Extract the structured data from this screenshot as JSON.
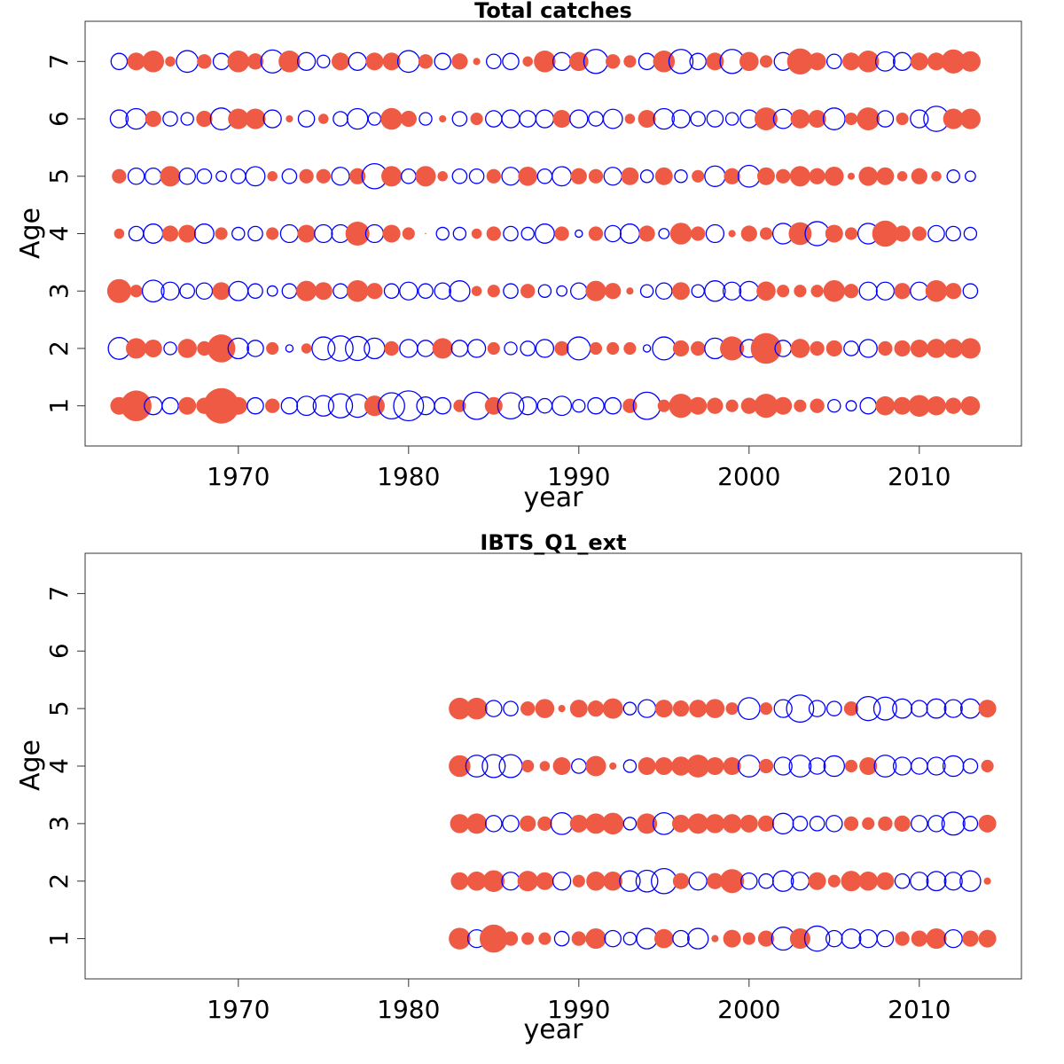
{
  "legend": {
    "colors": {
      "positive": "#ef5a44",
      "negative": "#0000ff"
    },
    "positive": "filled circle",
    "negative": "open circle"
  },
  "chart_data": [
    {
      "type": "bubble",
      "title": "Total catches",
      "xlabel": "year",
      "ylabel": "Age",
      "xlim": [
        1961,
        2016
      ],
      "ylim": [
        0.3,
        7.7
      ],
      "xticks": [
        "1970",
        "1980",
        "1990",
        "2000",
        "2010"
      ],
      "yticks": [
        "1",
        "2",
        "3",
        "4",
        "5",
        "6",
        "7"
      ],
      "grid": false,
      "bubble_values": "standardized residual; positive = filled red, negative = open blue, size proportional to |value|",
      "years": [
        1963,
        1964,
        1965,
        1966,
        1967,
        1968,
        1969,
        1970,
        1971,
        1972,
        1973,
        1974,
        1975,
        1976,
        1977,
        1978,
        1979,
        1980,
        1981,
        1982,
        1983,
        1984,
        1985,
        1986,
        1987,
        1988,
        1989,
        1990,
        1991,
        1992,
        1993,
        1994,
        1995,
        1996,
        1997,
        1998,
        1999,
        2000,
        2001,
        2002,
        2003,
        2004,
        2005,
        2006,
        2007,
        2008,
        2009,
        2010,
        2011,
        2012,
        2013
      ],
      "ages": [
        {
          "age": 1,
          "values": [
            0.6,
            1.8,
            -0.6,
            -0.5,
            0.6,
            0.5,
            2.4,
            0.6,
            -0.5,
            0.4,
            -0.5,
            -0.7,
            -0.8,
            -1.1,
            -1.0,
            0.8,
            -1.3,
            -1.7,
            -0.6,
            -0.5,
            0.3,
            -1.4,
            0.6,
            -1.3,
            -0.6,
            -0.4,
            -0.7,
            -0.3,
            -0.5,
            -0.5,
            0.4,
            -1.4,
            0.3,
            1.1,
            0.6,
            0.5,
            0.3,
            0.5,
            1.1,
            0.6,
            0.3,
            0.4,
            -0.3,
            -0.2,
            -0.5,
            0.7,
            0.6,
            0.9,
            0.7,
            0.5,
            0.7
          ]
        },
        {
          "age": 2,
          "values": [
            -0.9,
            0.8,
            0.6,
            -0.3,
            0.7,
            0.4,
            1.5,
            -0.8,
            -0.5,
            0.3,
            -0.1,
            0.2,
            -1.0,
            -1.2,
            -1.1,
            -0.8,
            0.4,
            -0.6,
            -0.5,
            0.8,
            -0.5,
            -0.6,
            0.3,
            -0.3,
            -0.4,
            -0.6,
            0.4,
            -1.0,
            0.3,
            0.3,
            0.3,
            -0.1,
            -1.0,
            0.5,
            0.4,
            -0.8,
            1.1,
            -0.6,
            1.8,
            -0.5,
            0.7,
            0.4,
            0.5,
            -0.4,
            -0.6,
            0.4,
            0.5,
            0.6,
            0.7,
            0.7,
            0.8
          ]
        },
        {
          "age": 3,
          "values": [
            1.1,
            0.3,
            -0.9,
            -0.6,
            -0.4,
            -0.5,
            0.6,
            -0.7,
            -0.4,
            -0.2,
            -0.4,
            0.8,
            0.6,
            -0.4,
            0.9,
            0.5,
            -0.4,
            -0.6,
            -0.4,
            -0.5,
            -0.8,
            0.2,
            0.3,
            -0.4,
            0.4,
            -0.3,
            -0.2,
            -0.5,
            0.8,
            0.5,
            0.1,
            -0.3,
            -0.5,
            0.6,
            -0.3,
            -0.8,
            -0.6,
            -0.7,
            0.7,
            0.3,
            0.3,
            0.3,
            0.9,
            0.4,
            -0.6,
            -0.6,
            0.5,
            -0.6,
            0.9,
            0.5,
            -0.4
          ]
        },
        {
          "age": 4,
          "values": [
            0.2,
            -0.4,
            -0.7,
            0.5,
            0.6,
            -0.7,
            0.3,
            -0.3,
            -0.4,
            0.3,
            -0.6,
            0.6,
            -0.6,
            -0.6,
            1.1,
            -0.6,
            0.6,
            0.3,
            0.0,
            -0.3,
            -0.3,
            0.2,
            0.4,
            -0.4,
            -0.3,
            -0.7,
            0.4,
            -0.1,
            0.4,
            -0.5,
            -0.7,
            0.5,
            -0.2,
            0.9,
            0.4,
            -0.6,
            0.1,
            0.5,
            0.3,
            -0.8,
            1.0,
            -1.1,
            0.6,
            0.3,
            -0.8,
            1.3,
            0.5,
            0.4,
            -0.5,
            -0.4,
            -0.3
          ]
        },
        {
          "age": 5,
          "values": [
            0.4,
            -0.5,
            -0.5,
            0.8,
            -0.5,
            -0.4,
            -0.2,
            -0.4,
            -0.7,
            0.2,
            -0.4,
            0.4,
            0.4,
            -0.6,
            0.5,
            -1.2,
            0.8,
            -0.4,
            0.8,
            0.2,
            -0.4,
            -0.4,
            0.4,
            -0.6,
            0.7,
            -0.4,
            -0.7,
            0.5,
            0.4,
            -0.6,
            0.6,
            -0.3,
            0.6,
            -0.3,
            0.3,
            -0.8,
            0.5,
            -0.9,
            0.6,
            0.4,
            0.8,
            0.5,
            0.7,
            0.1,
            0.7,
            0.6,
            0.2,
            0.5,
            0.2,
            -0.3,
            -0.2
          ]
        },
        {
          "age": 6,
          "values": [
            -0.6,
            -0.8,
            0.5,
            -0.4,
            -0.3,
            0.5,
            -0.9,
            0.8,
            0.8,
            -0.6,
            0.1,
            -0.5,
            0.2,
            -0.4,
            -0.8,
            -0.3,
            0.9,
            0.5,
            -0.3,
            0.1,
            -0.4,
            0.3,
            -0.5,
            -0.6,
            -0.5,
            -0.6,
            0.6,
            -0.6,
            -0.4,
            -0.7,
            0.2,
            0.6,
            -0.8,
            -0.6,
            -0.4,
            -0.5,
            -0.3,
            -0.6,
            1.0,
            -0.7,
            0.7,
            0.6,
            -0.9,
            0.3,
            1.0,
            -0.5,
            0.3,
            -0.6,
            -1.2,
            0.8,
            0.8
          ]
        },
        {
          "age": 7,
          "values": [
            -0.5,
            0.6,
            0.9,
            0.2,
            -0.9,
            0.4,
            -0.5,
            0.9,
            0.5,
            -1.0,
            0.9,
            -0.6,
            -0.3,
            0.6,
            -0.6,
            0.6,
            0.6,
            -0.9,
            0.4,
            -0.5,
            0.5,
            0.1,
            -0.4,
            -0.5,
            0.2,
            0.9,
            -0.6,
            0.7,
            -1.1,
            0.4,
            0.3,
            -0.5,
            0.9,
            -1.1,
            -0.5,
            0.6,
            -1.1,
            0.7,
            0.3,
            -0.6,
            1.3,
            0.6,
            -0.4,
            0.6,
            0.9,
            -0.7,
            -0.6,
            0.6,
            0.6,
            1.1,
            0.8
          ]
        }
      ]
    },
    {
      "type": "bubble",
      "title": "IBTS_Q1_ext",
      "xlabel": "year",
      "ylabel": "Age",
      "xlim": [
        1961,
        2016
      ],
      "ylim": [
        0.3,
        7.7
      ],
      "xticks": [
        "1970",
        "1980",
        "1990",
        "2000",
        "2010"
      ],
      "yticks": [
        "1",
        "2",
        "3",
        "4",
        "5",
        "6",
        "7"
      ],
      "grid": false,
      "bubble_values": "standardized residual; positive = filled red, negative = open blue, size proportional to |value|",
      "years": [
        1983,
        1984,
        1985,
        1986,
        1987,
        1988,
        1989,
        1990,
        1991,
        1992,
        1993,
        1994,
        1995,
        1996,
        1997,
        1998,
        1999,
        2000,
        2001,
        2002,
        2003,
        2004,
        2005,
        2006,
        2007,
        2008,
        2009,
        2010,
        2011,
        2012,
        2013,
        2014
      ],
      "ages": [
        {
          "age": 1,
          "values": [
            0.9,
            -0.6,
            1.5,
            0.4,
            0.3,
            0.3,
            -0.4,
            0.4,
            0.8,
            -0.5,
            -0.3,
            -0.8,
            0.7,
            -0.5,
            -0.8,
            0.1,
            0.6,
            0.3,
            0.5,
            -1.0,
            0.8,
            -1.2,
            -0.5,
            -0.7,
            -0.6,
            -0.5,
            0.4,
            0.5,
            0.8,
            -0.6,
            0.5,
            0.6
          ]
        },
        {
          "age": 2,
          "values": [
            0.6,
            0.7,
            0.9,
            -0.6,
            0.8,
            0.6,
            -0.6,
            0.3,
            0.7,
            0.7,
            -0.8,
            -0.9,
            -1.2,
            0.5,
            -0.6,
            0.5,
            1.1,
            -0.5,
            -0.4,
            -0.8,
            -0.6,
            0.6,
            0.3,
            0.8,
            0.7,
            0.6,
            -0.4,
            -0.6,
            -0.7,
            -0.6,
            -0.8,
            0.1
          ]
        },
        {
          "age": 3,
          "values": [
            0.7,
            0.8,
            -0.5,
            -0.5,
            0.5,
            0.4,
            -0.9,
            0.6,
            0.8,
            0.9,
            -0.3,
            0.8,
            -0.9,
            0.6,
            0.8,
            0.7,
            0.7,
            0.6,
            0.5,
            -0.8,
            -0.4,
            -0.4,
            -0.5,
            0.4,
            0.3,
            0.4,
            0.5,
            -0.5,
            -0.5,
            -1.0,
            -0.4,
            0.6
          ]
        },
        {
          "age": 4,
          "values": [
            0.9,
            -0.9,
            -1.0,
            -1.0,
            0.3,
            0.2,
            0.6,
            -0.4,
            0.8,
            0.1,
            -0.3,
            0.6,
            0.6,
            0.7,
            1.0,
            0.6,
            0.6,
            -0.9,
            0.4,
            -0.6,
            -0.9,
            -0.5,
            -0.8,
            0.3,
            0.6,
            -0.9,
            -0.6,
            -0.5,
            -0.6,
            -0.8,
            -0.4,
            0.3
          ]
        },
        {
          "age": 5,
          "values": [
            0.9,
            0.9,
            -0.5,
            -0.4,
            0.4,
            0.7,
            0.1,
            0.6,
            0.5,
            0.8,
            -0.3,
            -0.6,
            0.6,
            0.5,
            0.6,
            0.7,
            0.3,
            -0.9,
            0.3,
            -0.6,
            -1.4,
            -0.5,
            -0.4,
            0.4,
            -1.1,
            -1.0,
            -0.7,
            -0.5,
            -0.7,
            -0.6,
            -0.7,
            0.6
          ]
        },
        {
          "age": 6,
          "values": []
        },
        {
          "age": 7,
          "values": []
        }
      ]
    }
  ]
}
